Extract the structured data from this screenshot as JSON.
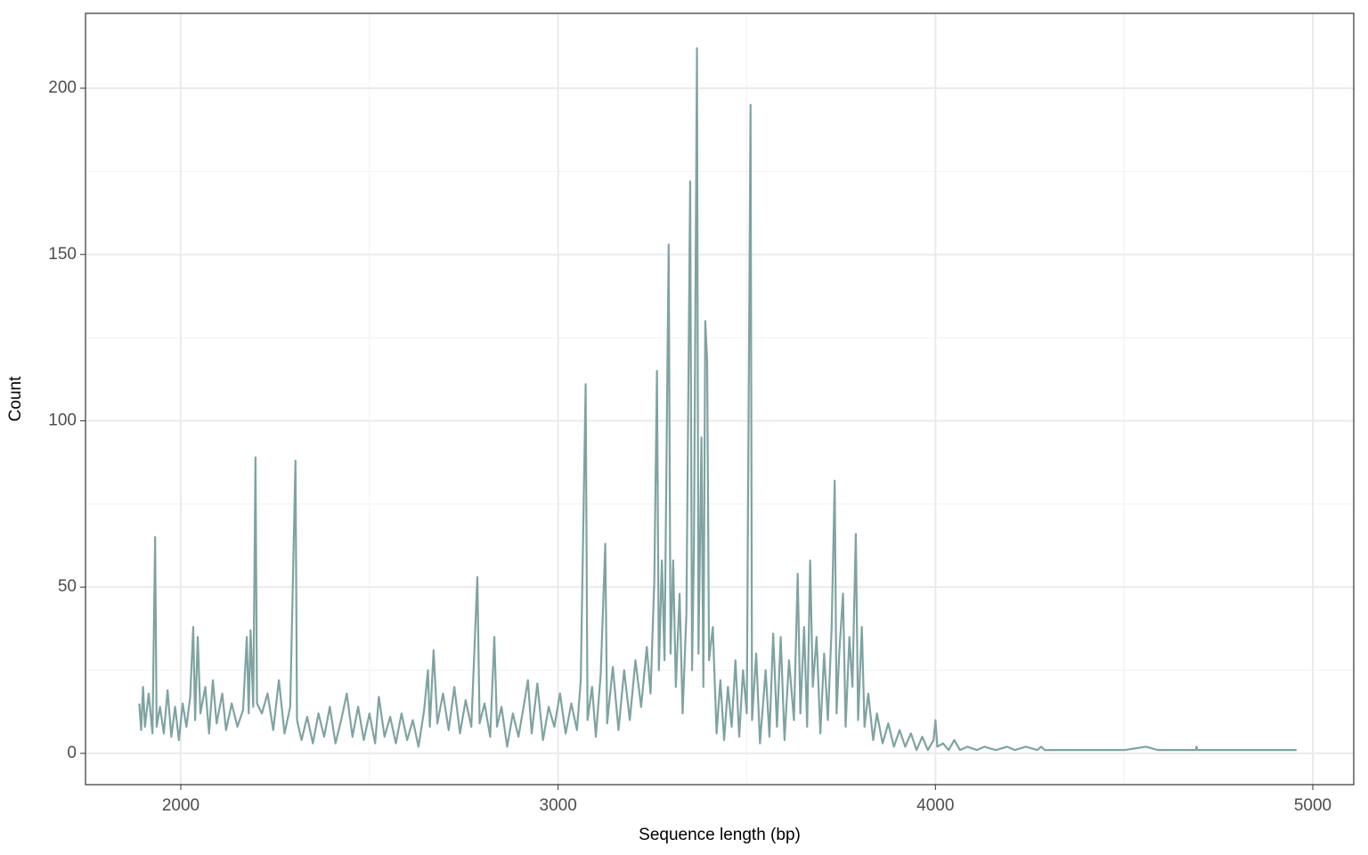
{
  "chart_data": {
    "type": "line",
    "x_label": "Sequence length (bp)",
    "y_label": "Count",
    "xlim": [
      1747.5,
      5108.6
    ],
    "ylim": [
      -9.4,
      222.5
    ],
    "xticks": [
      2000,
      3000,
      4000,
      5000
    ],
    "yticks": [
      0,
      50,
      100,
      150,
      200
    ],
    "xminor": [
      2500,
      3500,
      4500
    ],
    "yminor": [
      25,
      75,
      125,
      175
    ],
    "grid": true,
    "series": [
      {
        "color": "#7fa3a1",
        "x": [
          1890,
          1895,
          1900,
          1905,
          1915,
          1925,
          1932,
          1936,
          1945,
          1955,
          1965,
          1975,
          1985,
          1995,
          2005,
          2015,
          2025,
          2033,
          2038,
          2045,
          2052,
          2065,
          2075,
          2085,
          2095,
          2110,
          2120,
          2135,
          2150,
          2165,
          2175,
          2180,
          2185,
          2192,
          2198,
          2202,
          2215,
          2230,
          2245,
          2260,
          2275,
          2290,
          2304,
          2308,
          2320,
          2335,
          2350,
          2365,
          2380,
          2395,
          2410,
          2425,
          2440,
          2455,
          2470,
          2485,
          2500,
          2515,
          2525,
          2540,
          2555,
          2570,
          2585,
          2600,
          2615,
          2630,
          2645,
          2655,
          2660,
          2670,
          2680,
          2695,
          2710,
          2725,
          2740,
          2755,
          2770,
          2786,
          2792,
          2805,
          2820,
          2831,
          2838,
          2850,
          2865,
          2880,
          2895,
          2910,
          2920,
          2930,
          2945,
          2960,
          2975,
          2990,
          3005,
          3020,
          3035,
          3050,
          3060,
          3073,
          3078,
          3090,
          3100,
          3113,
          3125,
          3130,
          3145,
          3160,
          3175,
          3190,
          3205,
          3220,
          3235,
          3245,
          3255,
          3262,
          3267,
          3275,
          3282,
          3293,
          3298,
          3305,
          3312,
          3322,
          3330,
          3340,
          3350,
          3355,
          3360,
          3368,
          3372,
          3380,
          3385,
          3390,
          3395,
          3400,
          3410,
          3420,
          3430,
          3440,
          3450,
          3460,
          3470,
          3480,
          3490,
          3500,
          3510,
          3514,
          3525,
          3535,
          3550,
          3560,
          3570,
          3580,
          3590,
          3600,
          3612,
          3625,
          3635,
          3642,
          3652,
          3660,
          3668,
          3675,
          3685,
          3695,
          3705,
          3715,
          3725,
          3733,
          3738,
          3745,
          3755,
          3762,
          3772,
          3780,
          3789,
          3795,
          3805,
          3812,
          3822,
          3835,
          3845,
          3860,
          3875,
          3890,
          3905,
          3920,
          3935,
          3950,
          3965,
          3980,
          3995,
          4000,
          4005,
          4020,
          4035,
          4050,
          4065,
          4085,
          4110,
          4130,
          4160,
          4190,
          4210,
          4240,
          4270,
          4280,
          4290,
          4500,
          4558,
          4590,
          4690,
          4692,
          4694,
          4957
        ],
        "values": [
          15,
          7,
          20,
          8,
          18,
          6,
          65,
          8,
          14,
          6,
          19,
          5,
          14,
          4,
          15,
          8,
          17,
          38,
          10,
          35,
          12,
          20,
          6,
          22,
          9,
          18,
          7,
          15,
          8,
          13,
          35,
          12,
          37,
          14,
          89,
          15,
          12,
          18,
          7,
          22,
          6,
          14,
          88,
          10,
          4,
          11,
          3,
          12,
          5,
          14,
          3,
          10,
          18,
          5,
          14,
          4,
          12,
          3,
          17,
          5,
          11,
          3,
          12,
          4,
          10,
          2,
          13,
          25,
          8,
          31,
          9,
          18,
          7,
          20,
          6,
          16,
          8,
          53,
          9,
          15,
          5,
          35,
          8,
          14,
          2,
          12,
          5,
          15,
          22,
          6,
          21,
          4,
          14,
          8,
          18,
          6,
          15,
          7,
          22,
          111,
          10,
          20,
          5,
          24,
          63,
          9,
          26,
          7,
          25,
          10,
          28,
          14,
          32,
          18,
          52,
          115,
          25,
          58,
          28,
          153,
          30,
          58,
          20,
          48,
          12,
          42,
          172,
          25,
          62,
          212,
          30,
          95,
          20,
          130,
          118,
          28,
          38,
          6,
          22,
          4,
          20,
          8,
          28,
          5,
          25,
          12,
          195,
          10,
          30,
          3,
          25,
          5,
          36,
          8,
          35,
          4,
          28,
          10,
          54,
          12,
          38,
          8,
          58,
          20,
          35,
          6,
          30,
          10,
          38,
          82,
          12,
          30,
          48,
          8,
          35,
          20,
          66,
          10,
          38,
          8,
          18,
          4,
          12,
          3,
          9,
          2,
          7,
          2,
          6,
          1,
          5,
          1,
          4,
          10,
          2,
          3,
          1,
          4,
          1,
          2,
          1,
          2,
          1,
          2,
          1,
          2,
          1,
          2,
          1,
          1,
          2,
          1,
          1,
          2,
          1,
          1
        ]
      }
    ]
  }
}
